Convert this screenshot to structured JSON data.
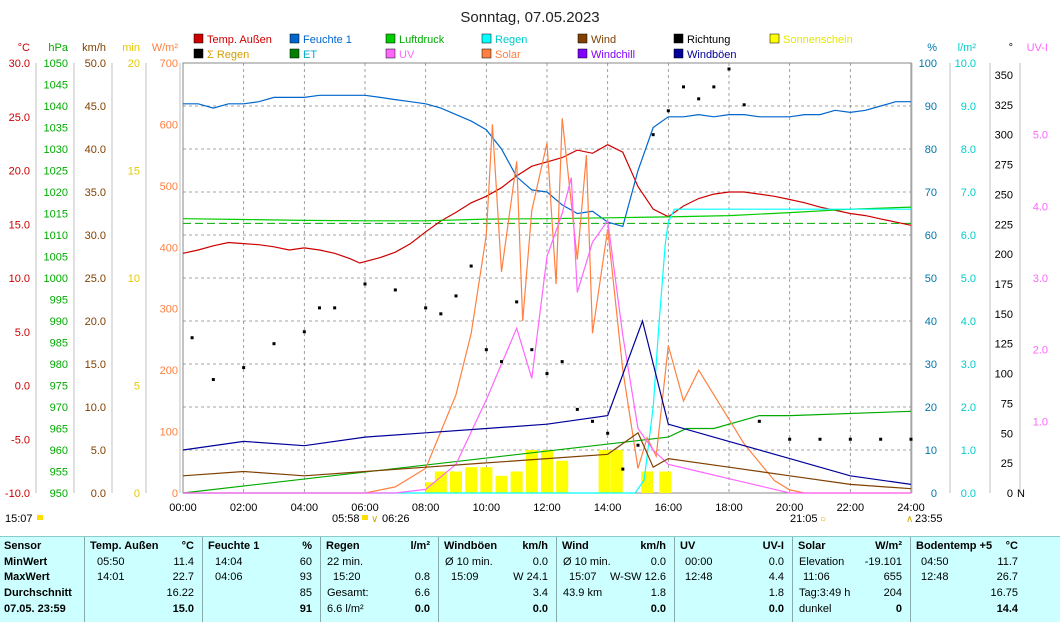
{
  "title": "Sonntag, 07.05.2023",
  "legend": [
    {
      "label": "Temp. Außen",
      "color": "#cc0000",
      "text_color": "#cc0000"
    },
    {
      "label": "Feuchte 1",
      "color": "#0066cc",
      "text_color": "#0066cc"
    },
    {
      "label": "Luftdruck",
      "color": "#00cc00",
      "text_color": "#00aa00"
    },
    {
      "label": "Regen",
      "color": "#00ffff",
      "text_color": "#00cccc"
    },
    {
      "label": "Wind",
      "color": "#804000",
      "text_color": "#804000"
    },
    {
      "label": "Richtung",
      "color": "#000000",
      "text_color": "#000000"
    },
    {
      "label": "Sonnenschein",
      "color": "#ffff00",
      "text_color": "#e6e600"
    },
    {
      "label": "Σ Regen",
      "color": "#000000",
      "text_color": "#d4a000"
    },
    {
      "label": "ET",
      "color": "#008000",
      "text_color": "#00aacc"
    },
    {
      "label": "UV",
      "color": "#ff66ff",
      "text_color": "#ff66ff"
    },
    {
      "label": "Solar",
      "color": "#ff8040",
      "text_color": "#ff8040"
    },
    {
      "label": "Windchill",
      "color": "#8000ff",
      "text_color": "#8000ff"
    },
    {
      "label": "Windböen",
      "color": "#000099",
      "text_color": "#000099"
    }
  ],
  "axes": {
    "temp": {
      "unit": "°C",
      "ticks": [
        "30.0",
        "25.0",
        "20.0",
        "15.0",
        "10.0",
        "5.0",
        "0.0",
        "-5.0",
        "-10.0"
      ],
      "color": "#cc0000"
    },
    "hpa": {
      "unit": "hPa",
      "ticks": [
        "1050",
        "1045",
        "1040",
        "1035",
        "1030",
        "1025",
        "1020",
        "1015",
        "1010",
        "1005",
        "1000",
        "995",
        "990",
        "985",
        "980",
        "975",
        "970",
        "965",
        "960",
        "955",
        "950"
      ],
      "color": "#00aa00"
    },
    "kmh": {
      "unit": "km/h",
      "ticks": [
        "50.0",
        "45.0",
        "40.0",
        "35.0",
        "30.0",
        "25.0",
        "20.0",
        "15.0",
        "10.0",
        "5.0",
        "0.0"
      ],
      "color": "#804000"
    },
    "min": {
      "unit": "min",
      "ticks": [
        "20",
        "15",
        "10",
        "5",
        "0"
      ],
      "color": "#e6c800"
    },
    "wm2": {
      "unit": "W/m²",
      "ticks": [
        "700",
        "600",
        "500",
        "400",
        "300",
        "200",
        "100",
        "0"
      ],
      "color": "#ff8040"
    },
    "pct": {
      "unit": "%",
      "ticks": [
        "100",
        "90",
        "80",
        "70",
        "60",
        "50",
        "40",
        "30",
        "20",
        "10",
        "0"
      ],
      "color": "#0077aa"
    },
    "lm2": {
      "unit": "l/m²",
      "ticks": [
        "10.0",
        "9.0",
        "8.0",
        "7.0",
        "6.0",
        "5.0",
        "4.0",
        "3.0",
        "2.0",
        "1.0",
        "0.0"
      ],
      "color": "#00cccc"
    },
    "deg": {
      "unit": "°",
      "ticks": [
        "350",
        "325",
        "300",
        "275",
        "250",
        "225",
        "200",
        "175",
        "150",
        "125",
        "100",
        "75",
        "50",
        "25",
        "0"
      ],
      "color": "#000000",
      "n_label": "N"
    },
    "uvi": {
      "unit": "UV-I",
      "ticks": [
        "5.0",
        "4.0",
        "3.0",
        "2.0",
        "1.0"
      ],
      "color": "#ff66ff"
    }
  },
  "chart_data": {
    "type": "line",
    "x_ticks": [
      "00:00",
      "02:00",
      "04:00",
      "06:00",
      "08:00",
      "10:00",
      "12:00",
      "14:00",
      "16:00",
      "18:00",
      "20:00",
      "22:00",
      "24:00"
    ],
    "x_range_hours": [
      0,
      24
    ],
    "series": [
      {
        "name": "Temp. Außen",
        "axis": "temp",
        "color": "#cc0000",
        "x": [
          0,
          0.5,
          1,
          1.5,
          2,
          2.5,
          3,
          3.5,
          4,
          4.5,
          5,
          5.5,
          5.83,
          6.5,
          7,
          7.5,
          8,
          8.5,
          9,
          9.5,
          10,
          10.5,
          11,
          11.5,
          12,
          12.5,
          13,
          13.5,
          14,
          14.5,
          15,
          15.5,
          16,
          16.5,
          17,
          17.5,
          18,
          18.5,
          19,
          19.5,
          20,
          20.5,
          21,
          21.5,
          22,
          22.5,
          23,
          23.5,
          24
        ],
        "y": [
          12.3,
          12.6,
          13.0,
          13.3,
          13.2,
          13.1,
          12.9,
          12.6,
          12.8,
          12.6,
          12.3,
          11.8,
          11.4,
          11.9,
          12.4,
          13.2,
          14.3,
          15.3,
          16.1,
          17.0,
          17.6,
          18.4,
          19.5,
          20.4,
          20.8,
          21.2,
          21.9,
          21.6,
          22.4,
          21.7,
          18.5,
          16.4,
          15.7,
          16.7,
          17.4,
          17.8,
          18.0,
          18.0,
          17.8,
          17.6,
          17.3,
          17.0,
          16.6,
          16.3,
          16.0,
          15.8,
          15.5,
          15.2,
          14.9
        ]
      },
      {
        "name": "Feuchte 1",
        "axis": "pct",
        "color": "#0066cc",
        "x": [
          0,
          0.5,
          1,
          1.5,
          2,
          2.5,
          3,
          3.5,
          4,
          4.5,
          5,
          5.5,
          6,
          6.5,
          7,
          7.5,
          8,
          8.5,
          9,
          9.5,
          10,
          10.5,
          11,
          11.5,
          12,
          12.5,
          13,
          13.5,
          14,
          14.5,
          15,
          15.5,
          16,
          16.5,
          17,
          17.5,
          18,
          18.5,
          19,
          19.5,
          20,
          20.5,
          21,
          21.5,
          22,
          22.5,
          23,
          23.5,
          24
        ],
        "y": [
          90.5,
          90.5,
          89.5,
          90.5,
          90.5,
          91,
          92,
          92,
          92,
          92.5,
          92.5,
          92.5,
          92.5,
          92,
          91.5,
          91,
          90.5,
          89.5,
          88,
          86.5,
          84.5,
          80,
          73.5,
          70.5,
          70,
          67,
          65,
          65.5,
          63,
          62,
          75,
          85,
          87.5,
          87.5,
          88,
          87.5,
          88,
          88,
          87.5,
          87.5,
          87.5,
          88,
          88,
          89,
          88.5,
          89,
          90,
          91,
          91
        ]
      },
      {
        "name": "Luftdruck",
        "axis": "hpa",
        "color": "#00cc00",
        "x": [
          0,
          2,
          4,
          6,
          8,
          10,
          12,
          14,
          16,
          18,
          20,
          22,
          24
        ],
        "y": [
          1013.8,
          1013.6,
          1013.4,
          1013.3,
          1013.3,
          1013.7,
          1013.8,
          1014.0,
          1014.2,
          1014.5,
          1015.2,
          1016.0,
          1016.5
        ]
      },
      {
        "name": "Regen",
        "axis": "lm2",
        "color": "#00ffff",
        "x": [
          0,
          14.9,
          15.2,
          15.5,
          15.7,
          15.9,
          16.0,
          16.2,
          24
        ],
        "y": [
          0,
          0,
          0.3,
          2.0,
          4.0,
          5.8,
          6.3,
          6.6,
          6.6
        ]
      },
      {
        "name": "Σ Regen",
        "axis": "lm2",
        "color": "#00aa00",
        "x": [
          0,
          16.0,
          16.6,
          17.5,
          18.5,
          19.0,
          20.0,
          24
        ],
        "y": [
          0,
          1.3,
          1.5,
          1.5,
          1.7,
          1.8,
          1.8,
          1.9
        ]
      },
      {
        "name": "Solar",
        "axis": "wm2",
        "color": "#ff8040",
        "x": [
          0,
          6,
          7,
          8,
          8.5,
          9,
          9.5,
          10,
          10.2,
          10.5,
          11,
          11.2,
          11.5,
          12,
          12.3,
          12.5,
          13,
          13.3,
          13.5,
          14,
          14.5,
          15,
          15.3,
          15.6,
          16,
          16.5,
          17,
          17.5,
          18,
          18.5,
          19,
          19.5,
          20,
          20.5,
          24
        ],
        "y": [
          0,
          0,
          10,
          40,
          100,
          160,
          260,
          420,
          600,
          360,
          540,
          280,
          460,
          570,
          340,
          610,
          380,
          550,
          260,
          430,
          200,
          40,
          90,
          60,
          240,
          150,
          200,
          160,
          120,
          80,
          50,
          20,
          5,
          0,
          0
        ]
      },
      {
        "name": "UV",
        "axis": "uvi",
        "color": "#ff66ff",
        "x": [
          0,
          7,
          8,
          9,
          10,
          10.5,
          11,
          11.5,
          12,
          12.5,
          12.8,
          13,
          13.5,
          14,
          14.5,
          15,
          15.5,
          16,
          17,
          18,
          19,
          20,
          24
        ],
        "y": [
          0,
          0,
          0.05,
          0.4,
          1.3,
          1.8,
          2.3,
          1.6,
          3.3,
          3.9,
          4.4,
          2.8,
          3.5,
          3.8,
          2.2,
          0.9,
          0.6,
          0.4,
          0.3,
          0.2,
          0.1,
          0,
          0
        ]
      },
      {
        "name": "Wind",
        "axis": "kmh",
        "color": "#804000",
        "x": [
          0,
          2,
          4,
          6,
          8,
          10,
          12,
          14,
          15,
          15.5,
          16,
          18,
          20,
          22,
          24
        ],
        "y": [
          2,
          2.5,
          2,
          2.5,
          3,
          3.5,
          4,
          4.5,
          7,
          3,
          4,
          3,
          2,
          1,
          0.5
        ]
      },
      {
        "name": "Windböen",
        "axis": "kmh",
        "color": "#000099",
        "x": [
          0,
          2,
          4,
          6,
          8,
          10,
          12,
          14,
          15.15,
          16,
          18,
          20,
          22,
          24
        ],
        "y": [
          5,
          6,
          5.5,
          6.5,
          7,
          7.5,
          8,
          9,
          20,
          8,
          6,
          4,
          2,
          1
        ]
      },
      {
        "name": "Richtung",
        "axis": "deg",
        "color": "#000000",
        "x": [
          0.3,
          1,
          2,
          3,
          4,
          4.5,
          5,
          6,
          7,
          8,
          8.5,
          9,
          9.5,
          10,
          10.5,
          11,
          11.5,
          12,
          12.5,
          13,
          13.5,
          14,
          14.5,
          15,
          15.5,
          16,
          16.5,
          17,
          17.5,
          18,
          18.5,
          19,
          20,
          21,
          22,
          23,
          24
        ],
        "y": [
          130,
          95,
          105,
          125,
          135,
          155,
          155,
          175,
          170,
          155,
          150,
          165,
          190,
          120,
          110,
          160,
          120,
          100,
          110,
          70,
          60,
          50,
          20,
          40,
          300,
          320,
          340,
          330,
          340,
          355,
          325,
          60,
          45,
          45,
          45,
          45,
          45
        ]
      },
      {
        "name": "Sonnenschein",
        "axis": "min",
        "color": "#ffff00",
        "x": [
          8.2,
          8.5,
          9,
          9.5,
          10,
          10.5,
          11,
          11.5,
          12,
          12.5,
          13.9,
          14.3,
          15.3,
          15.9
        ],
        "y": [
          0.5,
          1,
          1,
          1.2,
          1.2,
          0.8,
          1,
          2,
          2,
          1.5,
          2,
          2,
          1,
          1
        ]
      }
    ]
  },
  "markers": {
    "left_time": "15:07",
    "sunrise": "05:58",
    "sunrise2": "06:26",
    "sunset": "21:05",
    "sunset2": "23:55"
  },
  "table": {
    "sensor": {
      "header": "Sensor",
      "rows": [
        "MinWert",
        "MaxWert",
        "Durchschnitt",
        "07.05. 23:59"
      ]
    },
    "temp": {
      "header": "Temp. Außen",
      "unit": "°C",
      "r1_time": "05:50",
      "r1_val": "11.4",
      "r2_time": "14:01",
      "r2_val": "22.7",
      "r3_val": "16.22",
      "r4_val": "15.0"
    },
    "feuchte": {
      "header": "Feuchte 1",
      "unit": "%",
      "r1_time": "14:04",
      "r1_val": "60",
      "r2_time": "04:06",
      "r2_val": "93",
      "r3_val": "85",
      "r4_val": "91"
    },
    "regen": {
      "header": "Regen",
      "unit": "l/m²",
      "r1_label": "22 min.",
      "r2_time": "15:20",
      "r2_val": "0.8",
      "r3_label": "Gesamt:",
      "r3_val": "6.6",
      "r4_label": "6.6 l/m²",
      "r4_val": "0.0"
    },
    "windboeen": {
      "header": "Windböen",
      "unit": "km/h",
      "r1_label": "Ø 10 min.",
      "r1_val": "0.0",
      "r2_time": "15:09",
      "r2_val": "W 24.1",
      "r3_val": "3.4",
      "r4_val": "0.0"
    },
    "wind": {
      "header": "Wind",
      "unit": "km/h",
      "r1_label": "Ø 10 min.",
      "r1_val": "0.0",
      "r2_time": "15:07",
      "r2_val": "W-SW 12.6",
      "r3_label": "43.9 km",
      "r3_val": "1.8",
      "r4_val": "0.0"
    },
    "uv": {
      "header": "UV",
      "unit": "UV-I",
      "r1_time": "00:00",
      "r1_val": "0.0",
      "r2_time": "12:48",
      "r2_val": "4.4",
      "r3_val": "1.8",
      "r4_val": "0.0"
    },
    "solar": {
      "header": "Solar",
      "unit": "W/m²",
      "r1_label": "Elevation",
      "r1_val": "-19.101",
      "r2_time": "11:06",
      "r2_val": "655",
      "r3_label": "Tag:3:49 h",
      "r3_val": "204",
      "r4_label": "dunkel",
      "r4_val": "0"
    },
    "boden": {
      "header": "Bodentemp +5",
      "unit": "°C",
      "r1_time": "04:50",
      "r1_val": "11.7",
      "r2_time": "12:48",
      "r2_val": "26.7",
      "r3_val": "16.75",
      "r4_val": "14.4"
    }
  }
}
